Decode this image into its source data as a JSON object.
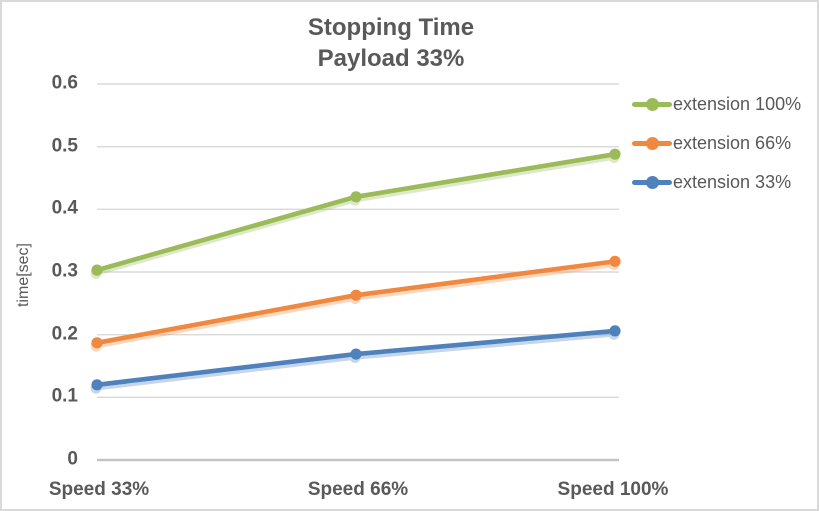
{
  "window": {
    "background": "#FFFFFF",
    "border_color": "#D9D9D9"
  },
  "chart_data": {
    "type": "line",
    "title": "Stopping Time",
    "subtitle": "Payload 33%",
    "categories": [
      "Speed 33%",
      "Speed 66%",
      "Speed 100%"
    ],
    "series": [
      {
        "name": "extension 100%",
        "color": "#9BBB59",
        "values": [
          0.303,
          0.42,
          0.488
        ]
      },
      {
        "name": "extension 66%",
        "color": "#F1883F",
        "values": [
          0.187,
          0.263,
          0.317
        ]
      },
      {
        "name": "extension 33%",
        "color": "#4F81BD",
        "values": [
          0.12,
          0.169,
          0.206
        ]
      }
    ],
    "xlabel": "",
    "ylabel": "time[sec]",
    "ylim": [
      0,
      0.6
    ],
    "yticks": [
      0.6,
      0.5,
      0.4,
      0.3,
      0.2,
      0.1,
      0
    ],
    "ytick_labels": [
      "0.6",
      "0.5",
      "0.4",
      "0.3",
      "0.2",
      "0.1",
      "0"
    ],
    "grid": true,
    "legend_position": "right",
    "marker": "circle",
    "gridline_color": "#D9D9D9",
    "axis_line_color": "#C3C3C3",
    "text_color": "#595959"
  }
}
